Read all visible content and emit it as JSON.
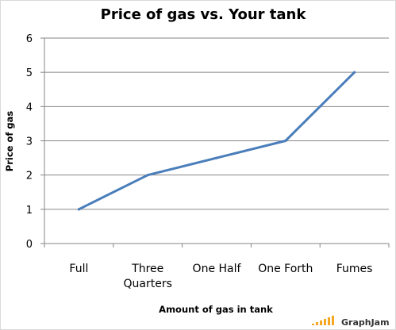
{
  "chart_data": {
    "type": "line",
    "title": "Price of gas vs. Your tank",
    "xlabel": "Amount of gas in tank",
    "ylabel": "Price of gas",
    "categories": [
      [
        "Full"
      ],
      [
        "Three",
        "Quarters"
      ],
      [
        "One Half"
      ],
      [
        "One Forth"
      ],
      [
        "Fumes"
      ]
    ],
    "values": [
      1,
      2,
      2.5,
      3,
      5
    ],
    "ylim": [
      0,
      6
    ],
    "yticks": [
      0,
      1,
      2,
      3,
      4,
      5,
      6
    ],
    "grid": true,
    "line_color": "#4a7ebb"
  },
  "watermark": {
    "text": "GraphJam",
    "bar_color": "#f5a623"
  }
}
